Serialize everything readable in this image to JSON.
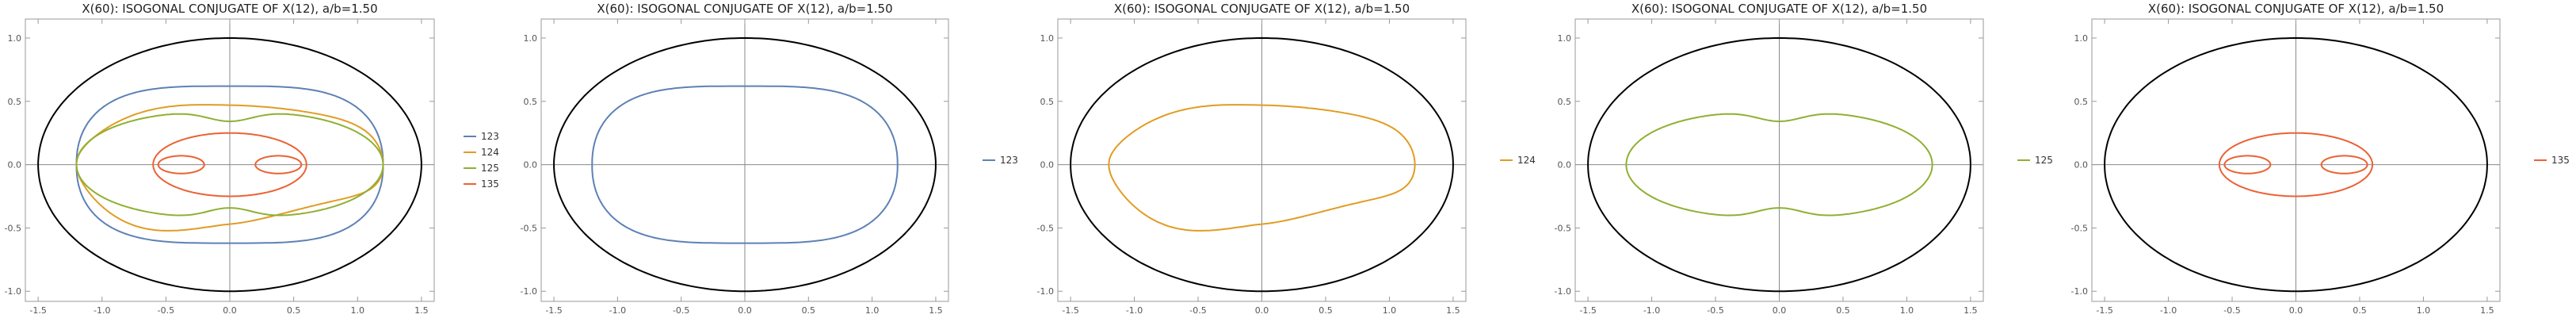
{
  "chart_data": [
    {
      "type": "line",
      "title": "X(60): ISOGONAL CONJUGATE OF X(12), a/b=1.50",
      "xlim": [
        -1.6,
        1.6
      ],
      "ylim": [
        -1.08,
        1.15
      ],
      "x_ticks": [
        "-1.5",
        "-1.0",
        "-0.5",
        "0.0",
        "0.5",
        "1.0",
        "1.5"
      ],
      "y_ticks": [
        "-1.0",
        "-0.5",
        "0.0",
        "0.5",
        "1.0"
      ],
      "legend": "right",
      "ellipse": {
        "a": 1.5,
        "b": 1.0,
        "color": "#000000"
      },
      "series": [
        {
          "name": "123",
          "color": "#5e81b5",
          "shape": "rounded",
          "rx": 1.2,
          "ry": 0.62,
          "lean": 0
        },
        {
          "name": "124",
          "color": "#e19c24",
          "shape": "lobed",
          "rx": 1.2,
          "ry": 0.47,
          "lean": 0.2
        },
        {
          "name": "125",
          "color": "#8fb032",
          "shape": "dimpled",
          "rx": 1.2,
          "ry": 0.42,
          "dip": 0.34
        },
        {
          "name": "135",
          "color": "#eb6235",
          "shape": "loops",
          "rx": 0.6,
          "ry": 0.25,
          "loop_cx": 0.38,
          "loop_rx": 0.18,
          "loop_ry": 0.07
        }
      ]
    },
    {
      "type": "line",
      "title": "X(60): ISOGONAL CONJUGATE OF X(12), a/b=1.50",
      "xlim": [
        -1.6,
        1.6
      ],
      "ylim": [
        -1.08,
        1.15
      ],
      "x_ticks": [
        "-1.5",
        "-1.0",
        "-0.5",
        "0.0",
        "0.5",
        "1.0",
        "1.5"
      ],
      "y_ticks": [
        "-1.0",
        "-0.5",
        "0.0",
        "0.5",
        "1.0"
      ],
      "legend": "right",
      "ellipse": {
        "a": 1.5,
        "b": 1.0,
        "color": "#000000"
      },
      "series": [
        {
          "name": "123",
          "color": "#5e81b5",
          "shape": "rounded",
          "rx": 1.2,
          "ry": 0.62,
          "lean": 0
        }
      ]
    },
    {
      "type": "line",
      "title": "X(60): ISOGONAL CONJUGATE OF X(12), a/b=1.50",
      "xlim": [
        -1.6,
        1.6
      ],
      "ylim": [
        -1.08,
        1.15
      ],
      "x_ticks": [
        "-1.5",
        "-1.0",
        "-0.5",
        "0.0",
        "0.5",
        "1.0",
        "1.5"
      ],
      "y_ticks": [
        "-1.0",
        "-0.5",
        "0.0",
        "0.5",
        "1.0"
      ],
      "legend": "right",
      "ellipse": {
        "a": 1.5,
        "b": 1.0,
        "color": "#000000"
      },
      "series": [
        {
          "name": "124",
          "color": "#e19c24",
          "shape": "lobed",
          "rx": 1.2,
          "ry": 0.47,
          "lean": 0.2
        }
      ]
    },
    {
      "type": "line",
      "title": "X(60): ISOGONAL CONJUGATE OF X(12), a/b=1.50",
      "xlim": [
        -1.6,
        1.6
      ],
      "ylim": [
        -1.08,
        1.15
      ],
      "x_ticks": [
        "-1.5",
        "-1.0",
        "-0.5",
        "0.0",
        "0.5",
        "1.0",
        "1.5"
      ],
      "y_ticks": [
        "-1.0",
        "-0.5",
        "0.0",
        "0.5",
        "1.0"
      ],
      "legend": "right",
      "ellipse": {
        "a": 1.5,
        "b": 1.0,
        "color": "#000000"
      },
      "series": [
        {
          "name": "125",
          "color": "#8fb032",
          "shape": "dimpled",
          "rx": 1.2,
          "ry": 0.42,
          "dip": 0.34
        }
      ]
    },
    {
      "type": "line",
      "title": "X(60): ISOGONAL CONJUGATE OF X(12), a/b=1.50",
      "xlim": [
        -1.6,
        1.6
      ],
      "ylim": [
        -1.08,
        1.15
      ],
      "x_ticks": [
        "-1.5",
        "-1.0",
        "-0.5",
        "0.0",
        "0.5",
        "1.0",
        "1.5"
      ],
      "y_ticks": [
        "-1.0",
        "-0.5",
        "0.0",
        "0.5",
        "1.0"
      ],
      "legend": "right",
      "ellipse": {
        "a": 1.5,
        "b": 1.0,
        "color": "#000000"
      },
      "series": [
        {
          "name": "135",
          "color": "#eb6235",
          "shape": "loops",
          "rx": 0.6,
          "ry": 0.25,
          "loop_cx": 0.38,
          "loop_rx": 0.18,
          "loop_ry": 0.07
        }
      ]
    }
  ]
}
